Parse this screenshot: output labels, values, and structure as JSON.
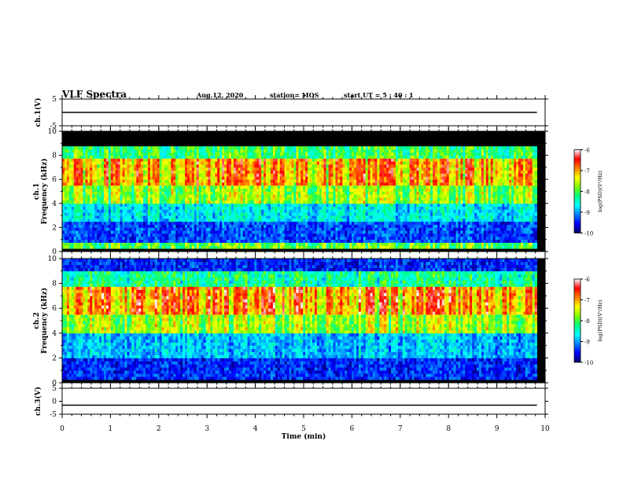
{
  "header": {
    "title": "VLF Spectra",
    "date": "Aug.12, 2020",
    "station": "station= MOS",
    "start_time": "start UT = 5 : 40 : 1"
  },
  "chart_data": [
    {
      "type": "line",
      "panel": "top",
      "ylabel": "ch.1(V)",
      "ylim": [
        -5,
        5
      ],
      "yticks": [
        "5",
        "-5"
      ],
      "x": [
        0,
        9.83
      ],
      "values": [
        0,
        0
      ],
      "xlim": [
        0,
        10
      ]
    },
    {
      "type": "heatmap",
      "panel": "ch1",
      "ylabel_line1": "ch.1",
      "ylabel_line2": "Frequency (kHz)",
      "ylim": [
        0,
        10
      ],
      "yticks": [
        "0",
        "2",
        "4",
        "6",
        "8",
        "10"
      ],
      "xlim": [
        0,
        10
      ],
      "data_end_min": 9.83,
      "colorbar": {
        "label": "log(PSD)(V²/Hz)",
        "range": [
          -10,
          -6
        ],
        "ticks": [
          "-6",
          "-7",
          "-8",
          "-9",
          "-10"
        ],
        "colors": [
          "#000060",
          "#0000ff",
          "#0080ff",
          "#00ffff",
          "#00ff80",
          "#80ff00",
          "#ffff00",
          "#ff8000",
          "#ff0000",
          "#ffffff"
        ]
      },
      "bands_khz": [
        {
          "from": 0,
          "to": 0.3,
          "level": 0.0
        },
        {
          "from": 0.3,
          "to": 0.8,
          "level": 0.55
        },
        {
          "from": 0.8,
          "to": 2.5,
          "level": 0.18
        },
        {
          "from": 2.5,
          "to": 4.0,
          "level": 0.35
        },
        {
          "from": 4.0,
          "to": 5.5,
          "level": 0.6
        },
        {
          "from": 5.5,
          "to": 7.8,
          "level": 0.78
        },
        {
          "from": 7.8,
          "to": 8.8,
          "level": 0.5
        },
        {
          "from": 8.8,
          "to": 10,
          "level": 0.0
        }
      ]
    },
    {
      "type": "heatmap",
      "panel": "ch2",
      "ylabel_line1": "ch.2",
      "ylabel_line2": "Frequency (kHz)",
      "ylim": [
        0,
        10
      ],
      "yticks": [
        "0",
        "2",
        "4",
        "6",
        "8",
        "10"
      ],
      "xlim": [
        0,
        10
      ],
      "data_end_min": 9.83,
      "colorbar": {
        "label": "log(PSD)(V²/Hz)",
        "range": [
          -10,
          -6
        ],
        "ticks": [
          "-6",
          "-7",
          "-8",
          "-9",
          "-10"
        ],
        "colors": [
          "#000060",
          "#0000ff",
          "#0080ff",
          "#00ffff",
          "#00ff80",
          "#80ff00",
          "#ffff00",
          "#ff8000",
          "#ff0000",
          "#ffffff"
        ]
      },
      "bands_khz": [
        {
          "from": 0,
          "to": 0.3,
          "level": 0.0
        },
        {
          "from": 0.3,
          "to": 2.0,
          "level": 0.15
        },
        {
          "from": 2.0,
          "to": 4.0,
          "level": 0.3
        },
        {
          "from": 4.0,
          "to": 5.5,
          "level": 0.62
        },
        {
          "from": 5.5,
          "to": 7.8,
          "level": 0.82
        },
        {
          "from": 7.8,
          "to": 9.0,
          "level": 0.45
        },
        {
          "from": 9.0,
          "to": 10,
          "level": 0.15
        }
      ]
    },
    {
      "type": "line",
      "panel": "bottom",
      "ylabel": "ch.3(V)",
      "ylim": [
        -5,
        5
      ],
      "yticks": [
        "5",
        "0",
        "-5"
      ],
      "x": [
        0,
        9.83
      ],
      "values": [
        -1.5,
        -1.5
      ],
      "xlim": [
        0,
        10
      ],
      "xlabel": "Time (min)",
      "xticks": [
        "0",
        "1",
        "2",
        "3",
        "4",
        "5",
        "6",
        "7",
        "8",
        "9",
        "10"
      ]
    }
  ]
}
